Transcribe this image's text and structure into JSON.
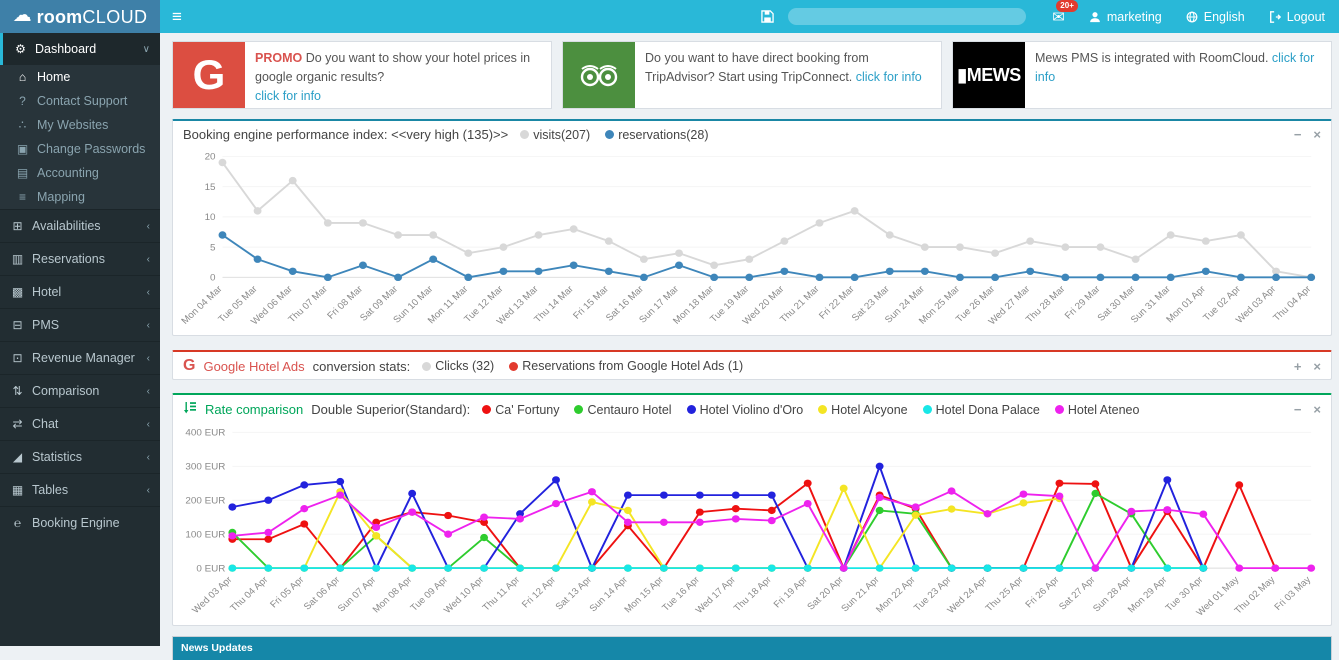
{
  "topbar": {
    "brand_bold": "room",
    "brand_light": "CLOUD",
    "badge": "20+",
    "user": "marketing",
    "language": "English",
    "logout": "Logout"
  },
  "sidebar": {
    "items": [
      {
        "slug": "dashboard",
        "glyph": "⚙",
        "label": "Dashboard",
        "type": "header",
        "chevron": "down"
      },
      {
        "slug": "home",
        "glyph": "⌂",
        "label": "Home",
        "type": "sub",
        "active": true
      },
      {
        "slug": "contact-support",
        "glyph": "?",
        "label": "Contact Support",
        "type": "sub"
      },
      {
        "slug": "my-websites",
        "glyph": "∴",
        "label": "My Websites",
        "type": "sub"
      },
      {
        "slug": "change-passwords",
        "glyph": "▣",
        "label": "Change Passwords",
        "type": "sub"
      },
      {
        "slug": "accounting",
        "glyph": "▤",
        "label": "Accounting",
        "type": "sub"
      },
      {
        "slug": "mapping",
        "glyph": "≡",
        "label": "Mapping",
        "type": "sub"
      },
      {
        "slug": "availabilities",
        "glyph": "⊞",
        "label": "Availabilities",
        "type": "top",
        "chevron": "left"
      },
      {
        "slug": "reservations",
        "glyph": "▥",
        "label": "Reservations",
        "type": "top",
        "chevron": "left"
      },
      {
        "slug": "hotel",
        "glyph": "▩",
        "label": "Hotel",
        "type": "top",
        "chevron": "left"
      },
      {
        "slug": "pms",
        "glyph": "⊟",
        "label": "PMS",
        "type": "top",
        "chevron": "left"
      },
      {
        "slug": "revenue-manager",
        "glyph": "⊡",
        "label": "Revenue Manager",
        "type": "top",
        "chevron": "left"
      },
      {
        "slug": "comparison",
        "glyph": "⇅",
        "label": "Comparison",
        "type": "top",
        "chevron": "left"
      },
      {
        "slug": "chat",
        "glyph": "⇄",
        "label": "Chat",
        "type": "top",
        "chevron": "left"
      },
      {
        "slug": "statistics",
        "glyph": "◢",
        "label": "Statistics",
        "type": "top",
        "chevron": "left"
      },
      {
        "slug": "tables",
        "glyph": "▦",
        "label": "Tables",
        "type": "top",
        "chevron": "left"
      },
      {
        "slug": "booking-engine",
        "glyph": "℮",
        "label": "Booking Engine",
        "type": "top"
      }
    ]
  },
  "cards": [
    {
      "slug": "google-promo",
      "logo": "gtxt",
      "logo_text": "G",
      "logo_bg": "#dc4e41",
      "tag": "PROMO",
      "text": "Do you want to show your hotel prices in google organic results?",
      "link": "click for info",
      "link_inline": false
    },
    {
      "slug": "tripadvisor",
      "logo": "owl",
      "logo_text": "",
      "logo_bg": "#4c8f3f",
      "tag": "",
      "text": "Do you want to have direct booking from TripAdvisor? Start using TripConnect.",
      "link": "click for info",
      "link_inline": true
    },
    {
      "slug": "mews",
      "logo": "mews",
      "logo_text": "▮MEWS",
      "logo_bg": "#000000",
      "tag": "",
      "text": "Mews PMS is integrated with RoomCloud.",
      "link": "click for info",
      "link_inline": true
    }
  ],
  "panels": {
    "performance": {
      "accent": "#1a87a5",
      "title": "Booking engine performance index: <<very high (135)>>",
      "legend": [
        {
          "label": "visits(207)",
          "color": "#d8d8d8"
        },
        {
          "label": "reservations(28)",
          "color": "#3e86ba"
        }
      ],
      "minimize": "−",
      "close": "×"
    },
    "google": {
      "accent": "#d73925",
      "brand_icon": "G",
      "brand": "Google Hotel Ads",
      "title_rest": "conversion stats:",
      "legend": [
        {
          "label": "Clicks (32)",
          "color": "#d8d8d8"
        },
        {
          "label": "Reservations from Google Hotel Ads (1)",
          "color": "#e23a2e"
        }
      ],
      "expand": "+",
      "close": "×"
    },
    "rates": {
      "accent": "#00a65a",
      "brand": "Rate comparison",
      "title_rest": "Double Superior(Standard):",
      "legend": [
        {
          "label": "Ca' Fortuny",
          "color": "#ee1111"
        },
        {
          "label": "Centauro Hotel",
          "color": "#2ecc2e"
        },
        {
          "label": "Hotel Violino d'Oro",
          "color": "#2222dd"
        },
        {
          "label": "Hotel Alcyone",
          "color": "#f4e524"
        },
        {
          "label": "Hotel Dona Palace",
          "color": "#18e7e7"
        },
        {
          "label": "Hotel Ateneo",
          "color": "#ee22ee"
        }
      ],
      "minimize": "−",
      "close": "×"
    }
  },
  "news": {
    "title": "News Updates"
  },
  "chart_data": [
    {
      "type": "line",
      "name": "booking-engine-performance",
      "title": "Booking engine performance index: <<very high (135)>>",
      "ylim": [
        0,
        20
      ],
      "ystep": 5,
      "ysuffix": "",
      "grid": "minimal",
      "legend_position": "header",
      "categories": [
        "Mon 04 Mar",
        "Tue 05 Mar",
        "Wed 06 Mar",
        "Thu 07 Mar",
        "Fri 08 Mar",
        "Sat 09 Mar",
        "Sun 10 Mar",
        "Mon 11 Mar",
        "Tue 12 Mar",
        "Wed 13 Mar",
        "Thu 14 Mar",
        "Fri 15 Mar",
        "Sat 16 Mar",
        "Sun 17 Mar",
        "Mon 18 Mar",
        "Tue 19 Mar",
        "Wed 20 Mar",
        "Thu 21 Mar",
        "Fri 22 Mar",
        "Sat 23 Mar",
        "Sun 24 Mar",
        "Mon 25 Mar",
        "Tue 26 Mar",
        "Wed 27 Mar",
        "Thu 28 Mar",
        "Fri 29 Mar",
        "Sat 30 Mar",
        "Sun 31 Mar",
        "Mon 01 Apr",
        "Tue 02 Apr",
        "Wed 03 Apr",
        "Thu 04 Apr"
      ],
      "series": [
        {
          "name": "visits",
          "color": "#d8d8d8",
          "values": [
            19,
            11,
            16,
            9,
            9,
            7,
            7,
            4,
            5,
            7,
            8,
            6,
            3,
            4,
            2,
            3,
            6,
            9,
            11,
            7,
            5,
            5,
            4,
            6,
            5,
            5,
            3,
            7,
            6,
            7,
            1,
            0
          ]
        },
        {
          "name": "reservations",
          "color": "#3e86ba",
          "values": [
            7,
            3,
            1,
            0,
            2,
            0,
            3,
            0,
            1,
            1,
            2,
            1,
            0,
            2,
            0,
            0,
            1,
            0,
            0,
            1,
            1,
            0,
            0,
            1,
            0,
            0,
            0,
            0,
            1,
            0,
            0,
            0
          ]
        }
      ]
    },
    {
      "type": "line",
      "name": "rate-comparison",
      "title": "Rate comparison Double Superior(Standard)",
      "ylim": [
        0,
        400
      ],
      "ystep": 100,
      "ysuffix": " EUR",
      "grid": "minimal",
      "legend_position": "header",
      "categories": [
        "Wed 03 Apr",
        "Thu 04 Apr",
        "Fri 05 Apr",
        "Sat 06 Apr",
        "Sun 07 Apr",
        "Mon 08 Apr",
        "Tue 09 Apr",
        "Wed 10 Apr",
        "Thu 11 Apr",
        "Fri 12 Apr",
        "Sat 13 Apr",
        "Sun 14 Apr",
        "Mon 15 Apr",
        "Tue 16 Apr",
        "Wed 17 Apr",
        "Thu 18 Apr",
        "Fri 19 Apr",
        "Sat 20 Apr",
        "Sun 21 Apr",
        "Mon 22 Apr",
        "Tue 23 Apr",
        "Wed 24 Apr",
        "Thu 25 Apr",
        "Fri 26 Apr",
        "Sat 27 Apr",
        "Sun 28 Apr",
        "Mon 29 Apr",
        "Tue 30 Apr",
        "Wed 01 May",
        "Thu 02 May",
        "Fri 03 May"
      ],
      "series": [
        {
          "name": "Ca' Fortuny",
          "color": "#ee1111",
          "values": [
            85,
            85,
            130,
            0,
            135,
            165,
            155,
            135,
            0,
            0,
            0,
            125,
            0,
            165,
            175,
            170,
            250,
            0,
            215,
            175,
            0,
            0,
            0,
            250,
            248,
            0,
            167,
            0,
            245,
            0,
            null
          ]
        },
        {
          "name": "Centauro Hotel",
          "color": "#2ecc2e",
          "values": [
            105,
            0,
            0,
            0,
            95,
            0,
            0,
            90,
            0,
            0,
            0,
            0,
            0,
            0,
            0,
            0,
            0,
            0,
            170,
            160,
            0,
            0,
            0,
            0,
            220,
            160,
            0,
            0,
            null,
            null,
            null
          ]
        },
        {
          "name": "Hotel Violino d'Oro",
          "color": "#2222dd",
          "values": [
            180,
            200,
            245,
            255,
            0,
            220,
            0,
            0,
            160,
            260,
            0,
            215,
            215,
            215,
            215,
            215,
            0,
            0,
            300,
            0,
            0,
            0,
            0,
            0,
            0,
            0,
            260,
            0,
            null,
            null,
            null
          ]
        },
        {
          "name": "Hotel Alcyone",
          "color": "#f4e524",
          "values": [
            0,
            0,
            0,
            225,
            95,
            0,
            0,
            0,
            0,
            0,
            195,
            170,
            0,
            0,
            0,
            0,
            0,
            235,
            0,
            156,
            174,
            160,
            192,
            205,
            null,
            null,
            null,
            null,
            null,
            null,
            null
          ]
        },
        {
          "name": "Hotel Dona Palace",
          "color": "#18e7e7",
          "values": [
            0,
            0,
            0,
            0,
            0,
            0,
            0,
            0,
            0,
            0,
            0,
            0,
            0,
            0,
            0,
            0,
            0,
            0,
            0,
            0,
            0,
            0,
            0,
            0,
            0,
            0,
            0,
            0,
            null,
            null,
            null
          ]
        },
        {
          "name": "Hotel Ateneo",
          "color": "#ee22ee",
          "values": [
            95,
            105,
            175,
            215,
            120,
            165,
            100,
            150,
            145,
            190,
            225,
            135,
            135,
            135,
            145,
            140,
            190,
            0,
            208,
            180,
            227,
            160,
            218,
            212,
            0,
            167,
            172,
            159,
            0,
            0,
            0
          ]
        }
      ]
    }
  ]
}
